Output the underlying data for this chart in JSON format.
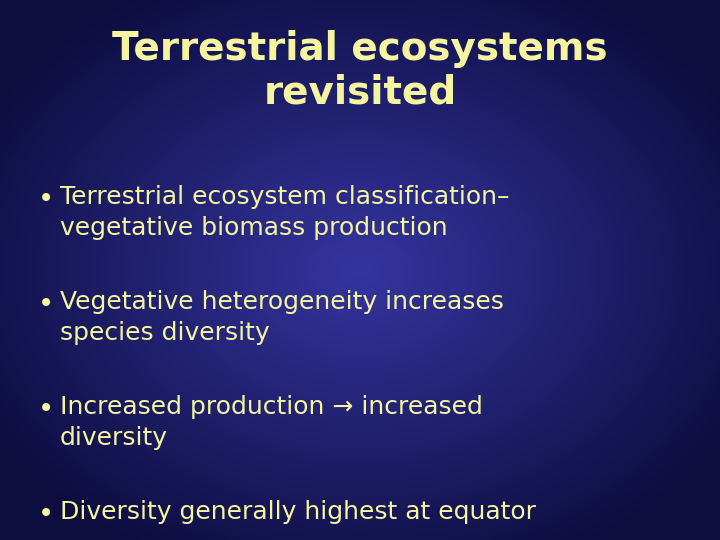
{
  "title": "Terrestrial ecosystems\nrevisited",
  "title_color": "#f5f5a0",
  "title_fontsize": 28,
  "title_fontweight": "bold",
  "bullet_points": [
    "Terrestrial ecosystem classification–\nvegetative biomass production",
    "Vegetative heterogeneity increases\nspecies diversity",
    "Increased production → increased\ndiversity",
    "Diversity generally highest at equator"
  ],
  "bullet_color": "#f5f5a0",
  "bullet_fontsize": 18,
  "fig_width": 7.2,
  "fig_height": 5.4,
  "dpi": 100,
  "bg_corner": "#0d0d40",
  "bg_center": "#3535a0"
}
